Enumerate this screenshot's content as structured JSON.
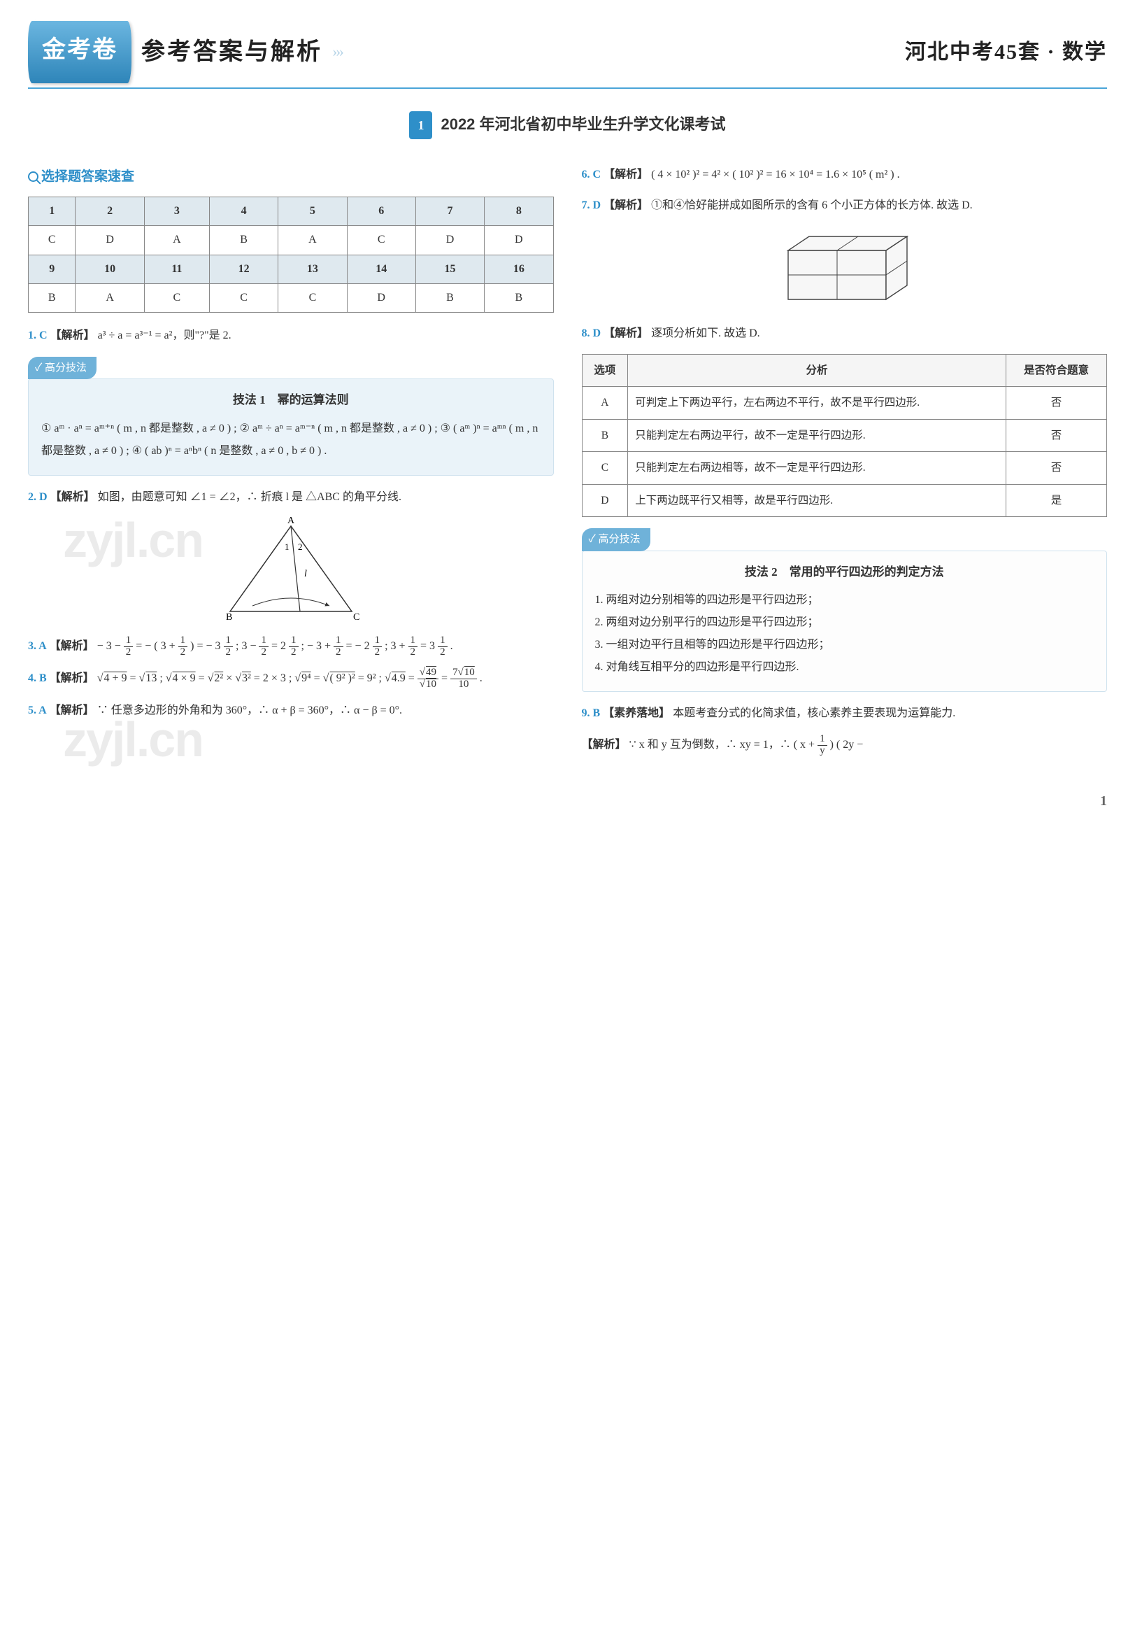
{
  "header": {
    "logo": "金考卷",
    "title": "参考答案与解析",
    "arrows": "› › ›",
    "right": "河北中考45套 · 数学"
  },
  "section": {
    "badge": "1",
    "text": "2022 年河北省初中毕业生升学文化课考试"
  },
  "quick_lookup_label": "选择题答案速查",
  "answer_grid": {
    "header_bg": "#dfe9ef",
    "border_color": "#888888",
    "headers1": [
      "1",
      "2",
      "3",
      "4",
      "5",
      "6",
      "7",
      "8"
    ],
    "answers1": [
      "C",
      "D",
      "A",
      "B",
      "A",
      "C",
      "D",
      "D"
    ],
    "headers2": [
      "9",
      "10",
      "11",
      "12",
      "13",
      "14",
      "15",
      "16"
    ],
    "answers2": [
      "B",
      "A",
      "C",
      "C",
      "C",
      "D",
      "B",
      "B"
    ]
  },
  "q1": {
    "num": "1. C",
    "tag": "【解析】",
    "text": "a³ ÷ a = a³⁻¹ = a²，则\"?\"是 2."
  },
  "tip1": {
    "badge": "高分技法",
    "title": "技法 1　幂的运算法则",
    "body": "① aᵐ · aⁿ = aᵐ⁺ⁿ ( m , n 都是整数 , a ≠ 0 ) ; ② aᵐ ÷ aⁿ = aᵐ⁻ⁿ ( m , n 都是整数 , a ≠ 0 ) ; ③ ( aᵐ )ⁿ = aᵐⁿ ( m , n 都是整数 , a ≠ 0 ) ; ④ ( ab )ⁿ = aⁿbⁿ ( n 是整数 , a ≠ 0 , b ≠ 0 ) ."
  },
  "q2": {
    "num": "2. D",
    "tag": "【解析】",
    "text": "如图，由题意可知 ∠1 = ∠2，∴ 折痕 l 是 △ABC 的角平分线.",
    "fig_labels": {
      "A": "A",
      "B": "B",
      "C": "C",
      "l": "l",
      "ang1": "1",
      "ang2": "2"
    }
  },
  "q3": {
    "num": "3. A",
    "tag": "【解析】",
    "text_html": "− 3 − <span class='frac'><span class='n'>1</span><span class='d'>2</span></span> = − ( 3 + <span class='frac'><span class='n'>1</span><span class='d'>2</span></span> ) = − 3 <span class='frac'><span class='n'>1</span><span class='d'>2</span></span> ; 3 − <span class='frac'><span class='n'>1</span><span class='d'>2</span></span> = 2 <span class='frac'><span class='n'>1</span><span class='d'>2</span></span> ; − 3 + <span class='frac'><span class='n'>1</span><span class='d'>2</span></span> = − 2 <span class='frac'><span class='n'>1</span><span class='d'>2</span></span> ; 3 + <span class='frac'><span class='n'>1</span><span class='d'>2</span></span> = 3 <span class='frac'><span class='n'>1</span><span class='d'>2</span></span> ."
  },
  "q4": {
    "num": "4. B",
    "tag": "【解析】",
    "text_html": "√<span class='sqrt'>4 + 9</span> = √<span class='sqrt'>13</span> ; √<span class='sqrt'>4 × 9</span> = √<span class='sqrt'>2²</span> × √<span class='sqrt'>3²</span> = 2 × 3 ; √<span class='sqrt'>9⁴</span> = √<span class='sqrt'>( 9² )²</span> = 9² ; √<span class='sqrt'>4.9</span> = <span class='frac'><span class='n'>√<span class=\"sqrt\">49</span></span><span class='d'>√<span class=\"sqrt\">10</span></span></span> = <span class='frac'><span class='n'>7√<span class=\"sqrt\">10</span></span><span class='d'>10</span></span> ."
  },
  "q5": {
    "num": "5. A",
    "tag": "【解析】",
    "text": "∵ 任意多边形的外角和为 360°，∴ α + β = 360°，∴ α − β = 0°."
  },
  "q6": {
    "num": "6. C",
    "tag": "【解析】",
    "text": "( 4 × 10² )² = 4² × ( 10² )² = 16 × 10⁴ = 1.6 × 10⁵ ( m² ) ."
  },
  "q7": {
    "num": "7. D",
    "tag": "【解析】",
    "text": "①和④恰好能拼成如图所示的含有 6 个小正方体的长方体. 故选 D.",
    "cuboid": {
      "stroke": "#444",
      "fill": "#f7f7f7"
    }
  },
  "q8": {
    "num": "8. D",
    "tag": "【解析】",
    "text": "逐项分析如下. 故选 D.",
    "table": {
      "headers": [
        "选项",
        "分析",
        "是否符合题意"
      ],
      "rows": [
        [
          "A",
          "可判定上下两边平行，左右两边不平行，故不是平行四边形.",
          "否"
        ],
        [
          "B",
          "只能判定左右两边平行，故不一定是平行四边形.",
          "否"
        ],
        [
          "C",
          "只能判定左右两边相等，故不一定是平行四边形.",
          "否"
        ],
        [
          "D",
          "上下两边既平行又相等，故是平行四边形.",
          "是"
        ]
      ]
    }
  },
  "tip2": {
    "badge": "高分技法",
    "title": "技法 2　常用的平行四边形的判定方法",
    "items": [
      "1. 两组对边分别相等的四边形是平行四边形；",
      "2. 两组对边分别平行的四边形是平行四边形；",
      "3. 一组对边平行且相等的四边形是平行四边形；",
      "4. 对角线互相平分的四边形是平行四边形."
    ]
  },
  "q9": {
    "num": "9. B",
    "tag1": "【素养落地】",
    "tag2": "【解析】",
    "text1": "本题考查分式的化简求值，核心素养主要表现为运算能力.",
    "text2_html": "∵ x 和 y 互为倒数，∴ xy = 1，∴ ( x + <span class='frac'><span class='n'>1</span><span class='d'>y</span></span> ) ( 2y −"
  },
  "pageno": "1",
  "watermark": "zyjl.cn",
  "colors": {
    "brand": "#2e8fc9",
    "tip_bg": "#eaf3f9",
    "tip_border": "#cfe2ee"
  }
}
